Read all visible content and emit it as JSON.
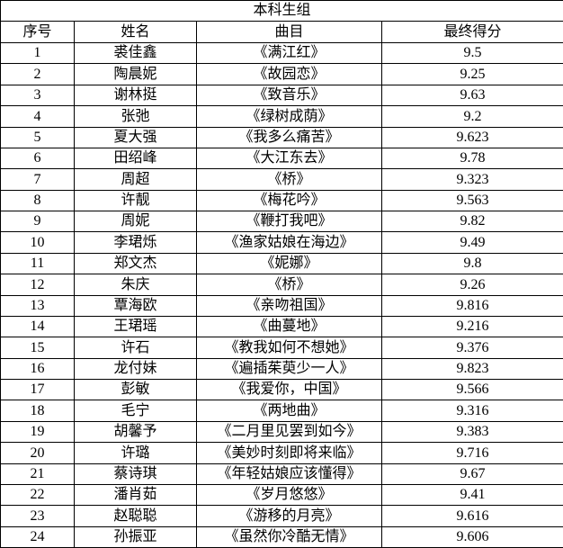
{
  "title": "本科生组",
  "columns": [
    "序号",
    "姓名",
    "曲目",
    "最终得分"
  ],
  "rows": [
    {
      "no": "1",
      "name": "裘佳鑫",
      "song": "《满江红》",
      "score": "9.5"
    },
    {
      "no": "2",
      "name": "陶晨妮",
      "song": "《故园恋》",
      "score": "9.25"
    },
    {
      "no": "3",
      "name": "谢林挺",
      "song": "《致音乐》",
      "score": "9.63"
    },
    {
      "no": "4",
      "name": "张弛",
      "song": "《绿树成荫》",
      "score": "9.2"
    },
    {
      "no": "5",
      "name": "夏大强",
      "song": "《我多么痛苦》",
      "score": "9.623"
    },
    {
      "no": "6",
      "name": "田绍峰",
      "song": "《大江东去》",
      "score": "9.78"
    },
    {
      "no": "7",
      "name": "周超",
      "song": "《桥》",
      "score": "9.323"
    },
    {
      "no": "8",
      "name": "许靓",
      "song": "《梅花吟》",
      "score": "9.563"
    },
    {
      "no": "9",
      "name": "周妮",
      "song": "《鞭打我吧》",
      "score": "9.82"
    },
    {
      "no": "10",
      "name": "李珺烁",
      "song": "《渔家姑娘在海边》",
      "score": "9.49"
    },
    {
      "no": "11",
      "name": "郑文杰",
      "song": "《妮娜》",
      "score": "9.8"
    },
    {
      "no": "12",
      "name": "朱庆",
      "song": "《桥》",
      "score": "9.26"
    },
    {
      "no": "13",
      "name": "覃海欧",
      "song": "《亲吻祖国》",
      "score": "9.816"
    },
    {
      "no": "14",
      "name": "王珺瑶",
      "song": "《曲蔓地》",
      "score": "9.216"
    },
    {
      "no": "15",
      "name": "许石",
      "song": "《教我如何不想她》",
      "score": "9.376"
    },
    {
      "no": "16",
      "name": "龙付妹",
      "song": "《遍插茱萸少一人》",
      "score": "9.823"
    },
    {
      "no": "17",
      "name": "彭敏",
      "song": "《我爱你，中国》",
      "score": "9.566"
    },
    {
      "no": "18",
      "name": "毛宁",
      "song": "《两地曲》",
      "score": "9.316"
    },
    {
      "no": "19",
      "name": "胡馨予",
      "song": "《二月里见罢到如今》",
      "score": "9.383"
    },
    {
      "no": "20",
      "name": "许璐",
      "song": "《美妙时刻即将来临》",
      "score": "9.716"
    },
    {
      "no": "21",
      "name": "蔡诗琪",
      "song": "《年轻姑娘应该懂得》",
      "score": "9.67"
    },
    {
      "no": "22",
      "name": "潘肖茹",
      "song": "《岁月悠悠》",
      "score": "9.41"
    },
    {
      "no": "23",
      "name": "赵聪聪",
      "song": "《游移的月亮》",
      "score": "9.616"
    },
    {
      "no": "24",
      "name": "孙振亚",
      "song": "《虽然你冷酷无情》",
      "score": "9.606"
    }
  ],
  "colors": {
    "border": "#000000",
    "background": "#ffffff",
    "text": "#000000"
  }
}
